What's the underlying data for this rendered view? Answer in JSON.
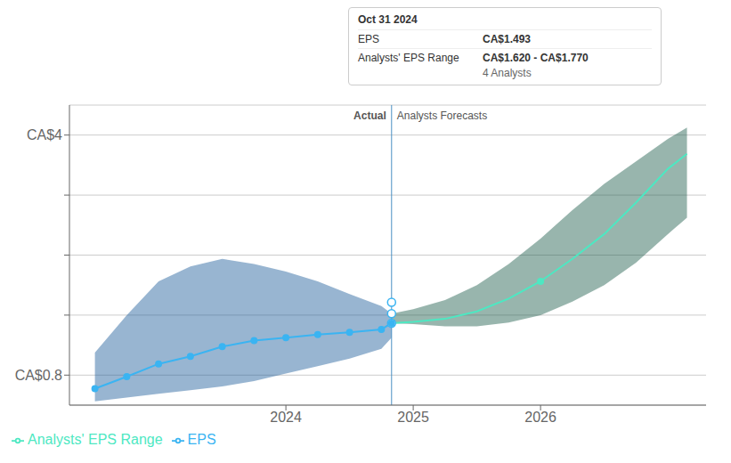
{
  "chart_data": {
    "type": "line",
    "xlim": [
      2022.3,
      2027.3
    ],
    "xticks": [
      2024,
      2025,
      2026
    ],
    "ylim": [
      0.4,
      4.4
    ],
    "yticks": [
      {
        "value": 0.8,
        "label": "CA$0.8"
      },
      {
        "value": 1.6,
        "label": null
      },
      {
        "value": 2.4,
        "label": null
      },
      {
        "value": 3.2,
        "label": null
      },
      {
        "value": 4,
        "label": "CA$4"
      }
    ],
    "grid": true,
    "legend": "lower left",
    "series": [
      {
        "type": "area",
        "color": "#1a5a9a",
        "x": [
          2022.5,
          2022.75,
          2023.0,
          2023.25,
          2023.5,
          2023.75,
          2024.0,
          2024.25,
          2024.5,
          2024.75,
          2024.83
        ],
        "lower": [
          0.45,
          0.5,
          0.55,
          0.6,
          0.65,
          0.72,
          0.82,
          0.92,
          1.02,
          1.15,
          1.3
        ],
        "upper": [
          1.1,
          1.6,
          2.05,
          2.25,
          2.35,
          2.28,
          2.18,
          2.05,
          1.88,
          1.72,
          1.62
        ]
      },
      {
        "type": "area",
        "color": "#1a5a4a",
        "x": [
          2024.83,
          2025.0,
          2025.25,
          2025.5,
          2025.75,
          2026.0,
          2026.25,
          2026.5,
          2026.75,
          2027.0,
          2027.15
        ],
        "lower": [
          1.493,
          1.48,
          1.45,
          1.45,
          1.5,
          1.6,
          1.78,
          2.0,
          2.3,
          2.68,
          2.9
        ],
        "upper": [
          1.62,
          1.68,
          1.8,
          2.0,
          2.28,
          2.62,
          3.0,
          3.35,
          3.65,
          3.95,
          4.1
        ]
      },
      {
        "name": "EPS",
        "type": "line",
        "color": "#3ab4f2",
        "marker": "circle",
        "x": [
          2022.5,
          2022.75,
          2023.0,
          2023.25,
          2023.5,
          2023.75,
          2024.0,
          2024.25,
          2024.5,
          2024.75,
          2024.83
        ],
        "values": [
          0.62,
          0.78,
          0.95,
          1.05,
          1.18,
          1.26,
          1.3,
          1.34,
          1.37,
          1.41,
          1.493
        ]
      },
      {
        "name": "Analysts' EPS Range",
        "type": "line",
        "color": "#4de8c2",
        "x": [
          2024.83,
          2025.0,
          2025.25,
          2025.5,
          2025.75,
          2026.0,
          2026.25,
          2026.5,
          2026.75,
          2027.0,
          2027.15
        ],
        "values": [
          1.493,
          1.51,
          1.55,
          1.65,
          1.82,
          2.05,
          2.35,
          2.68,
          3.1,
          3.55,
          3.75
        ]
      },
      {
        "type": "scatter",
        "color": "#4de8c2",
        "marker": "circle",
        "x": [
          2026.0
        ],
        "values": [
          2.05
        ]
      },
      {
        "type": "scatter",
        "color": "#3ab4f2",
        "marker": "open_circle",
        "x": [
          2024.83,
          2024.83,
          2024.83
        ],
        "values": [
          1.62,
          1.77,
          1.493
        ]
      }
    ],
    "vlines": [
      {
        "x": 2024.83,
        "color": "#4a90c4"
      }
    ],
    "annotations": [
      {
        "text": "Actual",
        "x": 2024.83,
        "side": "left"
      },
      {
        "text": "Analysts Forecasts",
        "x": 2024.83,
        "side": "right"
      }
    ],
    "tooltip": {
      "title": "Oct 31 2024",
      "rows": [
        {
          "label": "EPS",
          "value": "CA$1.493"
        },
        {
          "label": "Analysts' EPS Range",
          "value": "CA$1.620 - CA$1.770"
        }
      ],
      "note": "4 Analysts"
    }
  }
}
